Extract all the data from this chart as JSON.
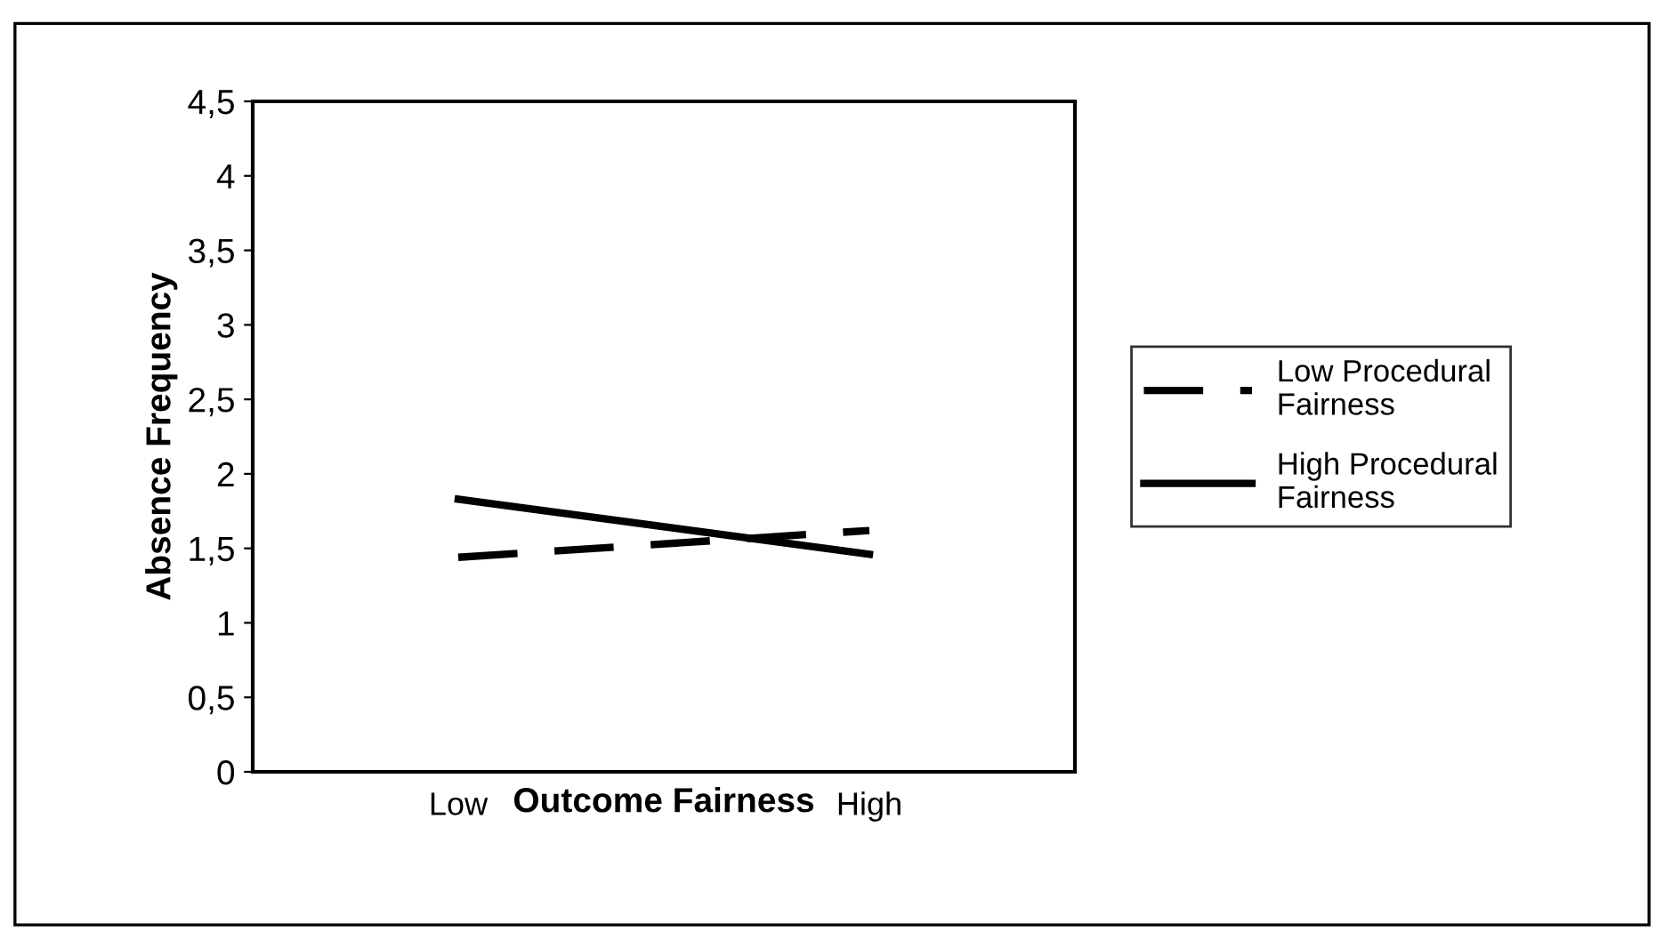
{
  "chart_data": {
    "type": "line",
    "xlabel": "Outcome Fairness",
    "ylabel": "Absence Frequency",
    "categories": [
      "Low",
      "High"
    ],
    "series": [
      {
        "name": "Low Procedural Fairness",
        "color": "#000000",
        "line_style": "dashed",
        "values": [
          1.44,
          1.62
        ]
      },
      {
        "name": "High Procedural Fairness",
        "color": "#000000",
        "line_style": "solid",
        "values": [
          1.83,
          1.46
        ]
      }
    ],
    "ylim": [
      0,
      4.5
    ],
    "yticks": [
      0,
      {
        "value": 0.5,
        "label": "0,5"
      },
      1,
      {
        "value": 1.5,
        "label": "1,5"
      },
      2,
      {
        "value": 2.5,
        "label": "2,5"
      },
      3,
      {
        "value": 3.5,
        "label": "3,5"
      },
      4,
      {
        "value": 4.5,
        "label": "4,5"
      }
    ],
    "grid": false,
    "legend": "right",
    "marker": "none"
  }
}
